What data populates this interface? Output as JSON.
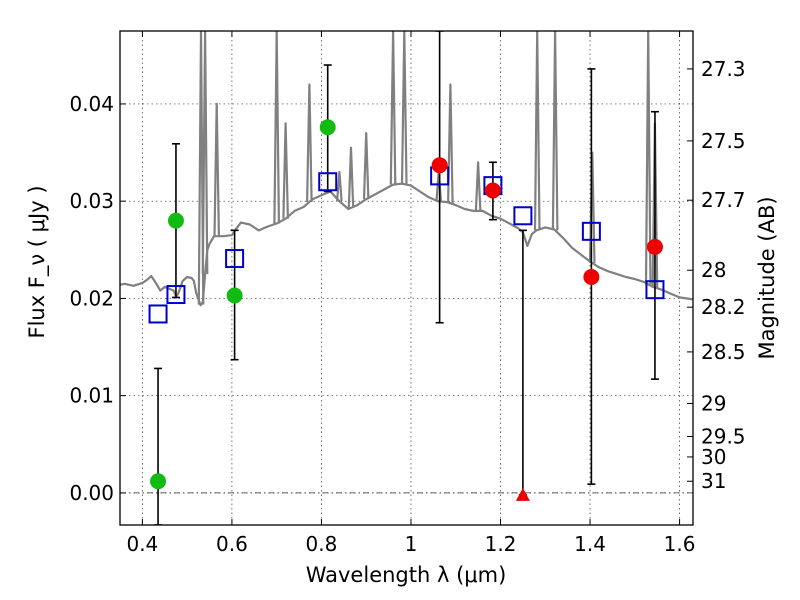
{
  "chart_data": {
    "type": "scatter",
    "xlabel": "Wavelength λ (μm)",
    "ylabel": "Flux F_ν ( μJy )",
    "ylabel_right": "Magnitude (AB)",
    "xlim": [
      0.35,
      1.63
    ],
    "ylim": [
      -0.0033,
      0.0475
    ],
    "grid": true,
    "x_ticks": [
      {
        "value": 0.4,
        "label": "0.4"
      },
      {
        "value": 0.6,
        "label": "0.6"
      },
      {
        "value": 0.8,
        "label": "0.8"
      },
      {
        "value": 1.0,
        "label": "1"
      },
      {
        "value": 1.2,
        "label": "1.2"
      },
      {
        "value": 1.4,
        "label": "1.4"
      },
      {
        "value": 1.6,
        "label": "1.6"
      }
    ],
    "y_ticks": [
      {
        "value": 0.0,
        "label": "0.00"
      },
      {
        "value": 0.01,
        "label": "0.01"
      },
      {
        "value": 0.02,
        "label": "0.02"
      },
      {
        "value": 0.03,
        "label": "0.03"
      },
      {
        "value": 0.04,
        "label": "0.04"
      }
    ],
    "magnitude_ticks": [
      {
        "flux": 0.0436,
        "label": "27.3"
      },
      {
        "flux": 0.0362,
        "label": "27.5"
      },
      {
        "flux": 0.0301,
        "label": "27.7"
      },
      {
        "flux": 0.0229,
        "label": "28"
      },
      {
        "flux": 0.0191,
        "label": "28.2"
      },
      {
        "flux": 0.0145,
        "label": "28.5"
      },
      {
        "flux": 0.0092,
        "label": "29"
      },
      {
        "flux": 0.0058,
        "label": "29.5"
      },
      {
        "flux": 0.0037,
        "label": "30"
      },
      {
        "flux": 0.0012,
        "label": "31"
      }
    ],
    "colors": {
      "template": "#808080",
      "model": "#0000cc",
      "green": "#11bb11",
      "red": "#ee0000",
      "errorbar": "#000000"
    },
    "series": [
      {
        "style": "model-squares",
        "points": [
          {
            "x": 0.435,
            "y": 0.0184
          },
          {
            "x": 0.475,
            "y": 0.0204
          },
          {
            "x": 0.606,
            "y": 0.0241
          },
          {
            "x": 0.814,
            "y": 0.032
          },
          {
            "x": 1.064,
            "y": 0.0326
          },
          {
            "x": 1.183,
            "y": 0.0316
          },
          {
            "x": 1.25,
            "y": 0.0285
          },
          {
            "x": 1.403,
            "y": 0.0269
          },
          {
            "x": 1.545,
            "y": 0.0209
          }
        ]
      },
      {
        "style": "green-circles",
        "points": [
          {
            "x": 0.435,
            "y": 0.0012,
            "err_lo": -0.0033,
            "err_hi": 0.0128
          },
          {
            "x": 0.475,
            "y": 0.028,
            "err_lo": 0.0201,
            "err_hi": 0.0359
          },
          {
            "x": 0.606,
            "y": 0.0203,
            "err_lo": 0.0137,
            "err_hi": 0.027
          },
          {
            "x": 0.814,
            "y": 0.0376,
            "err_lo": 0.031,
            "err_hi": 0.044
          }
        ]
      },
      {
        "style": "red-circles",
        "points": [
          {
            "x": 1.064,
            "y": 0.0337,
            "err_lo": 0.0175,
            "err_hi": 0.0475
          },
          {
            "x": 1.183,
            "y": 0.0311,
            "err_lo": 0.0281,
            "err_hi": 0.034
          },
          {
            "x": 1.403,
            "y": 0.0222,
            "err_lo": 0.0009,
            "err_hi": 0.0436
          },
          {
            "x": 1.545,
            "y": 0.0253,
            "err_lo": 0.0117,
            "err_hi": 0.0392
          }
        ]
      },
      {
        "style": "red-triangle",
        "points": [
          {
            "x": 1.25,
            "y": -0.0002,
            "err_lo": -0.0002,
            "err_hi": 0.027
          }
        ]
      }
    ],
    "template_spectrum": [
      [
        0.35,
        0.0214
      ],
      [
        0.36,
        0.0215
      ],
      [
        0.38,
        0.0213
      ],
      [
        0.4,
        0.0216
      ],
      [
        0.41,
        0.0219
      ],
      [
        0.42,
        0.0223
      ],
      [
        0.43,
        0.0216
      ],
      [
        0.44,
        0.0208
      ],
      [
        0.45,
        0.0212
      ],
      [
        0.46,
        0.021
      ],
      [
        0.47,
        0.0208
      ],
      [
        0.475,
        0.0202
      ],
      [
        0.48,
        0.0205
      ],
      [
        0.49,
        0.0218
      ],
      [
        0.5,
        0.0222
      ],
      [
        0.51,
        0.0221
      ],
      [
        0.515,
        0.0218
      ],
      [
        0.52,
        0.0206
      ],
      [
        0.53,
        0.0193
      ],
      [
        0.535,
        0.0196
      ],
      [
        0.54,
        0.0225
      ],
      [
        0.545,
        0.025
      ],
      [
        0.55,
        0.0256
      ],
      [
        0.56,
        0.0264
      ],
      [
        0.58,
        0.0264
      ],
      [
        0.6,
        0.0265
      ],
      [
        0.61,
        0.0272
      ],
      [
        0.62,
        0.0278
      ],
      [
        0.64,
        0.0276
      ],
      [
        0.66,
        0.027
      ],
      [
        0.68,
        0.0274
      ],
      [
        0.7,
        0.0277
      ],
      [
        0.72,
        0.0282
      ],
      [
        0.74,
        0.029
      ],
      [
        0.76,
        0.0294
      ],
      [
        0.78,
        0.0302
      ],
      [
        0.8,
        0.0306
      ],
      [
        0.82,
        0.031
      ],
      [
        0.84,
        0.03
      ],
      [
        0.86,
        0.0292
      ],
      [
        0.88,
        0.0296
      ],
      [
        0.9,
        0.0302
      ],
      [
        0.92,
        0.0307
      ],
      [
        0.94,
        0.0312
      ],
      [
        0.96,
        0.0317
      ],
      [
        0.98,
        0.0318
      ],
      [
        1.0,
        0.0316
      ],
      [
        1.02,
        0.031
      ],
      [
        1.04,
        0.0304
      ],
      [
        1.06,
        0.03
      ],
      [
        1.08,
        0.0299
      ],
      [
        1.1,
        0.0296
      ],
      [
        1.12,
        0.0292
      ],
      [
        1.14,
        0.029
      ],
      [
        1.16,
        0.029
      ],
      [
        1.18,
        0.0285
      ],
      [
        1.2,
        0.0282
      ],
      [
        1.22,
        0.0277
      ],
      [
        1.24,
        0.0272
      ],
      [
        1.25,
        0.0268
      ],
      [
        1.26,
        0.0254
      ],
      [
        1.27,
        0.0266
      ],
      [
        1.28,
        0.027
      ],
      [
        1.3,
        0.0273
      ],
      [
        1.32,
        0.0271
      ],
      [
        1.34,
        0.0262
      ],
      [
        1.36,
        0.0252
      ],
      [
        1.38,
        0.0245
      ],
      [
        1.4,
        0.0238
      ],
      [
        1.42,
        0.0232
      ],
      [
        1.44,
        0.0228
      ],
      [
        1.46,
        0.0225
      ],
      [
        1.48,
        0.0222
      ],
      [
        1.5,
        0.022
      ],
      [
        1.52,
        0.0217
      ],
      [
        1.54,
        0.0212
      ],
      [
        1.56,
        0.0209
      ],
      [
        1.58,
        0.0205
      ],
      [
        1.6,
        0.0201
      ],
      [
        1.63,
        0.0199
      ]
    ],
    "emission_lines": [
      {
        "x": 0.531,
        "peak": 0.0475
      },
      {
        "x": 0.54,
        "peak": 0.0475
      },
      {
        "x": 0.566,
        "peak": 0.04
      },
      {
        "x": 0.7,
        "peak": 0.0475
      },
      {
        "x": 0.72,
        "peak": 0.038
      },
      {
        "x": 0.773,
        "peak": 0.042
      },
      {
        "x": 0.84,
        "peak": 0.033
      },
      {
        "x": 0.866,
        "peak": 0.0355
      },
      {
        "x": 0.9,
        "peak": 0.037
      },
      {
        "x": 0.96,
        "peak": 0.0475
      },
      {
        "x": 0.985,
        "peak": 0.0475
      },
      {
        "x": 1.062,
        "peak": 0.033
      },
      {
        "x": 1.088,
        "peak": 0.042
      },
      {
        "x": 1.15,
        "peak": 0.034
      },
      {
        "x": 1.282,
        "peak": 0.0475
      },
      {
        "x": 1.322,
        "peak": 0.0475
      },
      {
        "x": 1.405,
        "peak": 0.035
      },
      {
        "x": 1.53,
        "peak": 0.0475
      },
      {
        "x": 1.545,
        "peak": 0.038
      }
    ]
  }
}
